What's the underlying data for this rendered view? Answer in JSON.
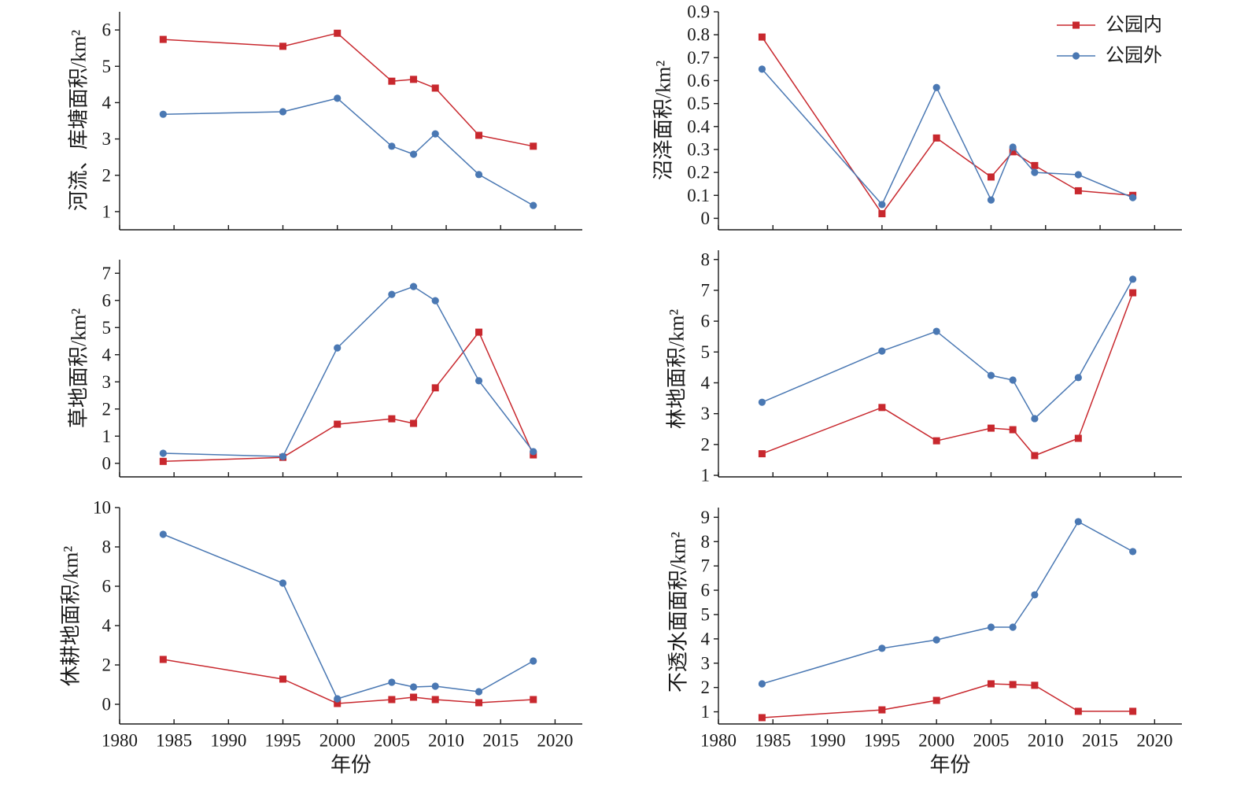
{
  "chart_data": [
    {
      "type": "line",
      "x": [
        1984,
        1995,
        2000,
        2005,
        2007,
        2009,
        2013,
        2018
      ],
      "series": [
        {
          "color": "#c8282e",
          "marker": "square",
          "values": [
            5.74,
            5.55,
            5.91,
            4.59,
            4.64,
            4.4,
            3.1,
            2.8
          ]
        },
        {
          "color": "#4a78b3",
          "marker": "circle",
          "values": [
            3.68,
            3.75,
            4.12,
            2.8,
            2.58,
            3.14,
            2.02,
            1.17
          ]
        }
      ],
      "xlabel": "",
      "ylabel": "河流、库塘面积/km²",
      "xlim": [
        1980,
        2022.5
      ],
      "ylim": [
        0.5,
        6.5
      ],
      "xticks": [
        1980,
        1985,
        1990,
        1995,
        2000,
        2005,
        2010,
        2015,
        2020
      ],
      "show_xtick_labels": false,
      "yticks": [
        1,
        2,
        3,
        4,
        5,
        6
      ],
      "grid": false
    },
    {
      "type": "line",
      "x": [
        1984,
        1995,
        2000,
        2005,
        2007,
        2009,
        2013,
        2018
      ],
      "series": [
        {
          "name": "公园内",
          "color": "#c8282e",
          "marker": "square",
          "values": [
            0.79,
            0.02,
            0.35,
            0.18,
            0.29,
            0.23,
            0.12,
            0.1
          ]
        },
        {
          "name": "公园外",
          "color": "#4a78b3",
          "marker": "circle",
          "values": [
            0.65,
            0.06,
            0.57,
            0.08,
            0.31,
            0.2,
            0.19,
            0.09
          ]
        }
      ],
      "xlabel": "",
      "ylabel": "沼泽面积/km²",
      "xlim": [
        1980,
        2022.5
      ],
      "ylim": [
        -0.05,
        0.9
      ],
      "xticks": [
        1980,
        1985,
        1990,
        1995,
        2000,
        2005,
        2010,
        2015,
        2020
      ],
      "show_xtick_labels": false,
      "yticks": [
        0,
        0.1,
        0.2,
        0.3,
        0.4,
        0.5,
        0.6,
        0.7,
        0.8,
        0.9
      ],
      "legend": "top-right",
      "grid": false
    },
    {
      "type": "line",
      "x": [
        1984,
        1995,
        2000,
        2005,
        2007,
        2009,
        2013,
        2018
      ],
      "series": [
        {
          "color": "#c8282e",
          "marker": "square",
          "values": [
            0.07,
            0.22,
            1.44,
            1.64,
            1.47,
            2.78,
            4.83,
            0.31
          ]
        },
        {
          "color": "#4a78b3",
          "marker": "circle",
          "values": [
            0.37,
            0.25,
            4.25,
            6.22,
            6.51,
            5.99,
            3.04,
            0.43
          ]
        }
      ],
      "xlabel": "",
      "ylabel": "草地面积/km²",
      "xlim": [
        1980,
        2022.5
      ],
      "ylim": [
        -0.5,
        7.5
      ],
      "xticks": [
        1980,
        1985,
        1990,
        1995,
        2000,
        2005,
        2010,
        2015,
        2020
      ],
      "show_xtick_labels": false,
      "yticks": [
        0,
        1,
        2,
        3,
        4,
        5,
        6,
        7
      ],
      "grid": false
    },
    {
      "type": "line",
      "x": [
        1984,
        1995,
        2000,
        2005,
        2007,
        2009,
        2013,
        2018
      ],
      "series": [
        {
          "color": "#c8282e",
          "marker": "square",
          "values": [
            1.7,
            3.2,
            2.12,
            2.53,
            2.48,
            1.64,
            2.2,
            6.92
          ]
        },
        {
          "color": "#4a78b3",
          "marker": "circle",
          "values": [
            3.37,
            5.03,
            5.67,
            4.24,
            4.09,
            2.84,
            4.17,
            7.36
          ]
        }
      ],
      "xlabel": "",
      "ylabel": "林地面积/km²",
      "xlim": [
        1980,
        2022.5
      ],
      "ylim": [
        0.95,
        8.3
      ],
      "xticks": [
        1980,
        1985,
        1990,
        1995,
        2000,
        2005,
        2010,
        2015,
        2020
      ],
      "show_xtick_labels": false,
      "yticks": [
        1,
        2,
        3,
        4,
        5,
        6,
        7,
        8
      ],
      "grid": false
    },
    {
      "type": "line",
      "x": [
        1984,
        1995,
        2000,
        2005,
        2007,
        2009,
        2013,
        2018
      ],
      "series": [
        {
          "color": "#c8282e",
          "marker": "square",
          "values": [
            2.28,
            1.28,
            0.04,
            0.24,
            0.36,
            0.24,
            0.08,
            0.24
          ]
        },
        {
          "color": "#4a78b3",
          "marker": "circle",
          "values": [
            8.64,
            6.16,
            0.28,
            1.12,
            0.88,
            0.92,
            0.64,
            2.2
          ]
        }
      ],
      "xlabel": "年份",
      "ylabel": "休耕地面积/km²",
      "xlim": [
        1980,
        2022.5
      ],
      "ylim": [
        -1,
        10
      ],
      "xticks": [
        1980,
        1985,
        1990,
        1995,
        2000,
        2005,
        2010,
        2015,
        2020
      ],
      "show_xtick_labels": true,
      "yticks": [
        0,
        2,
        4,
        6,
        8,
        10
      ],
      "grid": false
    },
    {
      "type": "line",
      "x": [
        1984,
        1995,
        2000,
        2005,
        2007,
        2009,
        2013,
        2018
      ],
      "series": [
        {
          "color": "#c8282e",
          "marker": "square",
          "values": [
            0.76,
            1.08,
            1.47,
            2.15,
            2.12,
            2.09,
            1.02,
            1.02
          ]
        },
        {
          "color": "#4a78b3",
          "marker": "circle",
          "values": [
            2.15,
            3.61,
            3.96,
            4.48,
            4.48,
            5.81,
            8.82,
            7.59
          ]
        }
      ],
      "xlabel": "年份",
      "ylabel": "不透水面面积/km²",
      "xlim": [
        1980,
        2022.5
      ],
      "ylim": [
        0.5,
        9.4
      ],
      "xticks": [
        1980,
        1985,
        1990,
        1995,
        2000,
        2005,
        2010,
        2015,
        2020
      ],
      "show_xtick_labels": true,
      "yticks": [
        1,
        2,
        3,
        4,
        5,
        6,
        7,
        8,
        9
      ],
      "grid": false
    }
  ]
}
